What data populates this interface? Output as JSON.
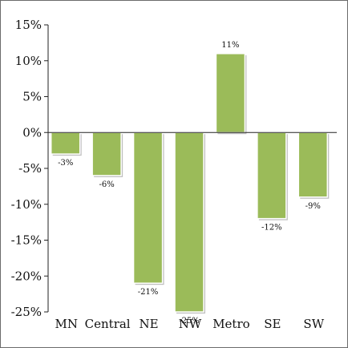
{
  "chart_data": {
    "type": "bar",
    "categories": [
      "MN",
      "Central",
      "NE",
      "NW",
      "Metro",
      "SE",
      "SW"
    ],
    "values": [
      -3,
      -6,
      -21,
      -25,
      11,
      -12,
      -9
    ],
    "data_labels": [
      "-3%",
      "-6%",
      "-21%",
      "-25%",
      "11%",
      "-12%",
      "-9%"
    ],
    "ylim": [
      -25,
      15
    ],
    "yticks": [
      15,
      10,
      5,
      0,
      -5,
      -10,
      -15,
      -20,
      -25
    ],
    "ytick_labels": [
      "15%",
      "10%",
      "5%",
      "0%",
      "-5%",
      "-10%",
      "-15%",
      "-20%",
      "-25%"
    ],
    "title": "",
    "xlabel": "",
    "ylabel": "",
    "grid": false,
    "legend": "none",
    "colors": {
      "bar_fill": "#9bbb59",
      "bar_edge": "#ffffff",
      "bar_shadow": "#8a8a8a",
      "axis": "#222222",
      "frame": "#6b6b6b"
    }
  }
}
